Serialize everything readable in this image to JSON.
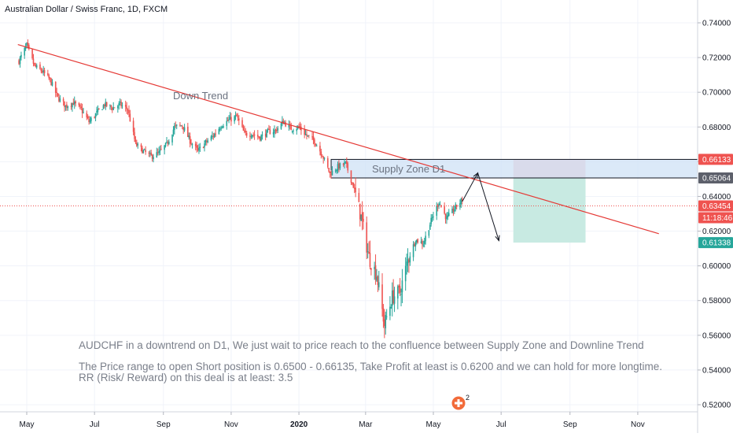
{
  "chart_data": {
    "type": "candlestick",
    "title": "Australian Dollar / Swiss Franc, 1D, FXCM",
    "x_labels": [
      "May",
      "Jul",
      "Sep",
      "Nov",
      "2020",
      "Mar",
      "May",
      "Jul",
      "Sep",
      "Nov"
    ],
    "y_ticks": [
      "0.74000",
      "0.72000",
      "0.70000",
      "0.68000",
      "0.66000",
      "0.64000",
      "0.62000",
      "0.60000",
      "0.58000",
      "0.56000",
      "0.54000",
      "0.52000"
    ],
    "ylim": [
      0.515,
      0.745
    ],
    "close_path": [
      [
        "2019-04-24",
        0.718
      ],
      [
        "2019-05-01",
        0.727
      ],
      [
        "2019-05-08",
        0.715
      ],
      [
        "2019-05-15",
        0.712
      ],
      [
        "2019-05-22",
        0.707
      ],
      [
        "2019-05-29",
        0.697
      ],
      [
        "2019-06-05",
        0.692
      ],
      [
        "2019-06-12",
        0.694
      ],
      [
        "2019-06-19",
        0.69
      ],
      [
        "2019-06-26",
        0.683
      ],
      [
        "2019-07-03",
        0.688
      ],
      [
        "2019-07-10",
        0.693
      ],
      [
        "2019-07-17",
        0.691
      ],
      [
        "2019-07-24",
        0.693
      ],
      [
        "2019-07-31",
        0.69
      ],
      [
        "2019-08-07",
        0.67
      ],
      [
        "2019-08-14",
        0.666
      ],
      [
        "2019-08-21",
        0.663
      ],
      [
        "2019-08-28",
        0.665
      ],
      [
        "2019-09-04",
        0.67
      ],
      [
        "2019-09-11",
        0.68
      ],
      [
        "2019-09-18",
        0.681
      ],
      [
        "2019-09-25",
        0.672
      ],
      [
        "2019-10-02",
        0.666
      ],
      [
        "2019-10-09",
        0.671
      ],
      [
        "2019-10-16",
        0.675
      ],
      [
        "2019-10-23",
        0.681
      ],
      [
        "2019-10-30",
        0.684
      ],
      [
        "2019-11-06",
        0.686
      ],
      [
        "2019-11-13",
        0.676
      ],
      [
        "2019-11-20",
        0.676
      ],
      [
        "2019-11-27",
        0.674
      ],
      [
        "2019-12-04",
        0.677
      ],
      [
        "2019-12-11",
        0.678
      ],
      [
        "2019-12-18",
        0.683
      ],
      [
        "2019-12-25",
        0.679
      ],
      [
        "2020-01-01",
        0.68
      ],
      [
        "2020-01-08",
        0.675
      ],
      [
        "2020-01-15",
        0.672
      ],
      [
        "2020-01-22",
        0.664
      ],
      [
        "2020-01-29",
        0.653
      ],
      [
        "2020-02-05",
        0.657
      ],
      [
        "2020-02-12",
        0.659
      ],
      [
        "2020-02-19",
        0.646
      ],
      [
        "2020-02-26",
        0.628
      ],
      [
        "2020-03-04",
        0.605
      ],
      [
        "2020-03-11",
        0.595
      ],
      [
        "2020-03-18",
        0.566
      ],
      [
        "2020-03-25",
        0.582
      ],
      [
        "2020-04-01",
        0.585
      ],
      [
        "2020-04-08",
        0.603
      ],
      [
        "2020-04-15",
        0.615
      ],
      [
        "2020-04-22",
        0.613
      ],
      [
        "2020-04-29",
        0.626
      ],
      [
        "2020-05-06",
        0.637
      ],
      [
        "2020-05-13",
        0.627
      ],
      [
        "2020-05-20",
        0.633
      ],
      [
        "2020-05-27",
        0.638
      ]
    ],
    "current_price": 0.63454,
    "price_tags": [
      "0.66133",
      "0.65064",
      "0.63454",
      "11:18:46",
      "0.61338"
    ],
    "supply_zone": {
      "low": 0.65064,
      "high": 0.66133,
      "label": "Supply Zone D1"
    },
    "trend_label": "Down Trend",
    "position": {
      "entry": 0.65064,
      "stop": 0.66133,
      "target": 0.61338
    },
    "colors": {
      "up": "#26a69a",
      "down": "#ef5350",
      "trend": "#e53935",
      "zone": "#cfe2f6",
      "stop": "#f5c7c9",
      "target": "#c8eae2"
    }
  },
  "notes": {
    "line1": "AUDCHF in a downtrend on D1, We just wait to price reach to the confluence between Supply Zone and Downline Trend",
    "line2": "The Price range to open Short position is 0.6500 - 0.66135, Take Profit at least is 0.6200 and we can hold for more longtime.",
    "line3": "RR (Risk/ Reward) on this deal is at least: 3.5"
  },
  "badge": {
    "count": "2",
    "icon": "first-aid-icon"
  }
}
